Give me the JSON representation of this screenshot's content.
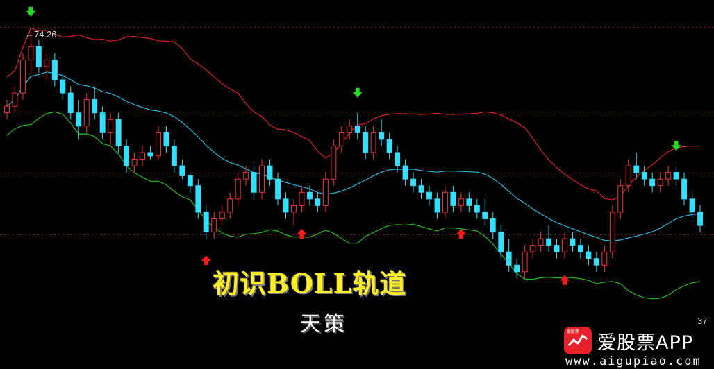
{
  "title": "初识BOLL轨道",
  "subtitle": "天策",
  "price_label": "←74.26",
  "corner_value": "37",
  "watermark": {
    "icon_caption": "爱股票",
    "name": "爱股票APP",
    "url": "www.aigupiao.com"
  },
  "colors": {
    "upper_band": "#e02020",
    "middle_band": "#21b8e0",
    "lower_band": "#1fbf1f",
    "candle_up": "#ff3333",
    "candle_down": "#33dfff",
    "buy_arrow": "#ff1a1a",
    "sell_arrow": "#22dd22",
    "title": "#ffee22"
  },
  "chart_data": {
    "type": "candlestick",
    "indicator": "BOLL",
    "y_range": [
      34,
      78
    ],
    "marked_high": 74.26,
    "candles": [
      [
        62,
        64,
        61,
        63
      ],
      [
        63,
        66,
        62,
        65
      ],
      [
        65,
        71,
        64,
        70
      ],
      [
        70,
        74.26,
        68,
        72
      ],
      [
        72,
        73,
        68,
        69
      ],
      [
        69,
        71,
        67,
        70
      ],
      [
        70,
        71,
        66,
        67
      ],
      [
        67,
        68,
        64,
        65
      ],
      [
        65,
        66,
        61,
        62
      ],
      [
        62,
        64,
        58,
        60
      ],
      [
        60,
        65,
        59,
        64
      ],
      [
        64,
        66,
        61,
        62
      ],
      [
        62,
        63,
        58,
        59
      ],
      [
        59,
        62,
        57,
        61
      ],
      [
        61,
        62,
        56,
        57
      ],
      [
        57,
        58,
        53,
        54
      ],
      [
        54,
        56,
        53,
        55
      ],
      [
        55,
        57,
        54,
        56
      ],
      [
        56,
        57,
        55,
        55.5
      ],
      [
        55.5,
        60,
        55,
        59
      ],
      [
        59,
        60,
        56,
        57
      ],
      [
        57,
        58,
        53,
        54
      ],
      [
        54,
        55,
        52,
        52.5
      ],
      [
        52.5,
        53,
        50,
        51
      ],
      [
        51,
        52,
        46,
        47
      ],
      [
        47,
        48,
        43,
        44
      ],
      [
        44,
        47,
        43,
        46
      ],
      [
        46,
        48,
        45,
        47
      ],
      [
        47,
        50,
        46,
        49
      ],
      [
        49,
        53,
        48,
        52
      ],
      [
        52,
        54,
        51,
        53
      ],
      [
        53,
        54,
        49,
        50
      ],
      [
        50,
        55,
        49,
        54
      ],
      [
        54,
        55,
        51,
        52
      ],
      [
        52,
        53,
        48,
        49
      ],
      [
        49,
        50,
        46,
        47
      ],
      [
        47,
        49,
        45,
        48
      ],
      [
        48,
        51,
        47,
        50
      ],
      [
        50,
        51,
        48,
        49
      ],
      [
        49,
        50,
        47,
        48
      ],
      [
        48,
        53,
        47,
        52
      ],
      [
        52,
        58,
        51,
        57
      ],
      [
        57,
        60,
        56,
        59
      ],
      [
        59,
        61,
        58,
        60
      ],
      [
        60,
        62,
        58,
        59
      ],
      [
        59,
        60,
        55,
        56
      ],
      [
        56,
        60,
        55,
        59
      ],
      [
        59,
        61,
        57,
        58
      ],
      [
        58,
        59,
        55,
        56
      ],
      [
        56,
        57,
        53,
        54
      ],
      [
        54,
        55,
        51,
        52
      ],
      [
        52,
        53,
        50,
        51
      ],
      [
        51,
        52,
        49,
        50
      ],
      [
        50,
        51,
        48,
        49
      ],
      [
        49,
        50,
        46,
        47
      ],
      [
        47,
        51,
        46,
        50
      ],
      [
        50,
        51,
        47,
        48
      ],
      [
        48,
        50,
        47,
        49
      ],
      [
        49,
        50,
        47,
        48
      ],
      [
        48,
        49,
        46,
        47
      ],
      [
        47,
        49,
        45,
        46
      ],
      [
        46,
        47,
        43,
        44
      ],
      [
        44,
        45,
        40,
        41
      ],
      [
        41,
        43,
        38,
        39
      ],
      [
        39,
        40,
        37,
        38
      ],
      [
        38,
        42,
        37,
        41
      ],
      [
        41,
        43,
        40,
        42
      ],
      [
        42,
        44,
        41,
        43
      ],
      [
        43,
        45,
        41,
        42
      ],
      [
        42,
        43,
        40,
        41
      ],
      [
        41,
        44,
        40,
        43
      ],
      [
        43,
        44,
        41,
        42
      ],
      [
        42,
        43,
        40,
        41
      ],
      [
        41,
        42,
        39,
        40
      ],
      [
        40,
        41,
        38,
        39
      ],
      [
        39,
        42,
        38,
        41
      ],
      [
        41,
        48,
        40,
        47
      ],
      [
        47,
        52,
        46,
        51
      ],
      [
        51,
        55,
        50,
        54
      ],
      [
        54,
        56,
        52,
        53
      ],
      [
        53,
        54,
        51,
        52
      ],
      [
        52,
        53,
        50,
        51
      ],
      [
        51,
        53,
        50,
        52
      ],
      [
        52,
        54,
        51,
        53
      ],
      [
        53,
        54,
        51,
        52
      ],
      [
        52,
        53,
        48,
        49
      ],
      [
        49,
        50,
        46,
        47
      ],
      [
        47,
        48,
        44,
        45
      ]
    ],
    "buy_signals": [
      25,
      37,
      57,
      70
    ],
    "sell_signals": [
      3,
      44,
      84
    ],
    "buy_signal_labels": [
      "buy",
      "buy",
      "buy",
      "buy"
    ],
    "sell_signal_labels": [
      "sell",
      "sell",
      "sell"
    ]
  }
}
